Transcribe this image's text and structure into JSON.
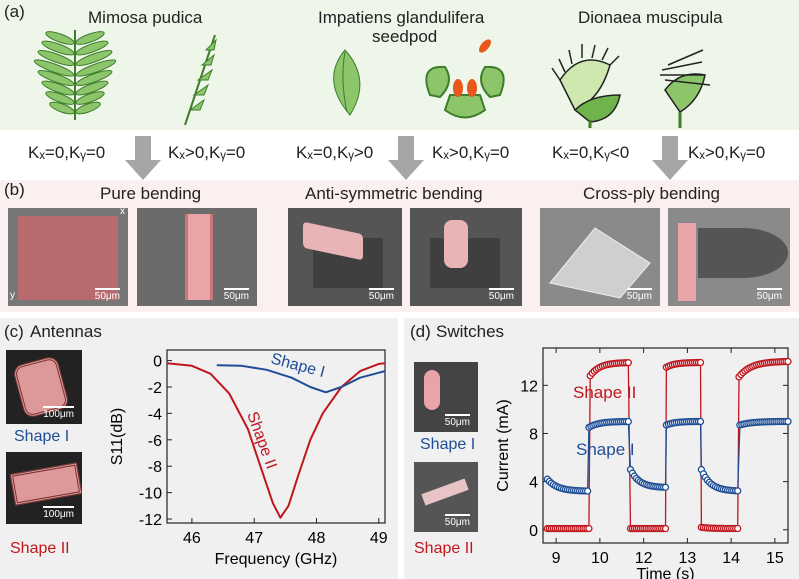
{
  "panel_a": {
    "label": "(a)",
    "plants": [
      {
        "name": "Mimosa pudica"
      },
      {
        "name": "Impatiens glandulifera",
        "name2": "seedpod"
      },
      {
        "name": "Dionaea muscipula"
      }
    ]
  },
  "curvatures": [
    "Kₓ=0,Kᵧ=0",
    "Kₓ>0,Kᵧ=0",
    "Kₓ=0,Kᵧ>0",
    "Kₓ>0,Kᵧ=0",
    "Kₓ=0,Kᵧ<0",
    "Kₓ>0,Kᵧ=0"
  ],
  "panel_b": {
    "label": "(b)",
    "titles": [
      "Pure bending",
      "Anti-symmetric bending",
      "Cross-ply bending"
    ],
    "scale": "50μm",
    "axis_x": "x",
    "axis_y": "y"
  },
  "panel_c": {
    "label": "(c)",
    "title": "Antennas",
    "scale": "100μm",
    "shape1": "Shape I",
    "shape2": "Shape II"
  },
  "panel_d": {
    "label": "(d)",
    "title": "Switches",
    "scale": "50μm",
    "shape1": "Shape I",
    "shape2": "Shape II"
  },
  "colors": {
    "red": "#c0161e",
    "blue": "#1f4e96",
    "panel_a_bg": "#eef6ea",
    "panel_b_bg": "#fcefef"
  },
  "chart_data": [
    {
      "type": "line",
      "xlabel": "Frequency (GHz)",
      "ylabel": "S11(dB)",
      "xlim": [
        45.6,
        49.1
      ],
      "ylim": [
        -12.3,
        0.8
      ],
      "xticks": [
        46,
        47,
        48,
        49
      ],
      "yticks": [
        0,
        -2,
        -4,
        -6,
        -8,
        -10,
        -12
      ],
      "series": [
        {
          "name": "Shape II",
          "color": "#c0161e",
          "x": [
            45.6,
            46.0,
            46.3,
            46.6,
            46.9,
            47.1,
            47.3,
            47.42,
            47.55,
            47.7,
            47.9,
            48.1,
            48.4,
            48.7,
            49.0,
            49.1
          ],
          "y": [
            -0.2,
            -0.4,
            -1.0,
            -2.5,
            -5.2,
            -8.0,
            -10.8,
            -11.9,
            -11.0,
            -8.8,
            -6.0,
            -4.0,
            -2.0,
            -0.8,
            -0.25,
            -0.2
          ]
        },
        {
          "name": "Shape I",
          "color": "#1f4e96",
          "x": [
            46.4,
            46.8,
            47.2,
            47.6,
            47.9,
            48.15,
            48.4,
            48.7,
            49.1
          ],
          "y": [
            -0.35,
            -0.4,
            -0.7,
            -1.3,
            -2.0,
            -2.4,
            -2.0,
            -1.3,
            -0.8
          ]
        }
      ]
    },
    {
      "type": "scatter",
      "xlabel": "Time (s)",
      "ylabel": "Current (mA)",
      "ylim": [
        -1.1,
        15.1
      ],
      "xtick_labels": [
        "9",
        "10",
        "12",
        "13",
        "14",
        "15"
      ],
      "yticks": [
        0,
        4,
        8,
        12
      ],
      "series": [
        {
          "name": "Shape II",
          "color": "#c0161e",
          "segments": [
            [
              8.8,
              9.75,
              0.1,
              0.1
            ],
            [
              9.78,
              10.65,
              12.8,
              13.9
            ],
            [
              10.7,
              11.5,
              0.1,
              0.1
            ],
            [
              11.52,
              12.3,
              13.5,
              13.9
            ],
            [
              12.32,
              13.15,
              0.2,
              0.1
            ],
            [
              13.18,
              14.3,
              12.7,
              14.0
            ]
          ]
        },
        {
          "name": "Shape I",
          "color": "#1f4e96",
          "segments": [
            [
              8.8,
              9.72,
              4.2,
              3.2
            ],
            [
              9.75,
              10.65,
              8.5,
              9.0
            ],
            [
              10.7,
              11.5,
              5.0,
              3.5
            ],
            [
              11.52,
              12.3,
              8.7,
              9.0
            ],
            [
              12.32,
              13.15,
              5.0,
              3.2
            ],
            [
              13.2,
              14.3,
              8.7,
              9.0
            ]
          ]
        }
      ]
    }
  ]
}
